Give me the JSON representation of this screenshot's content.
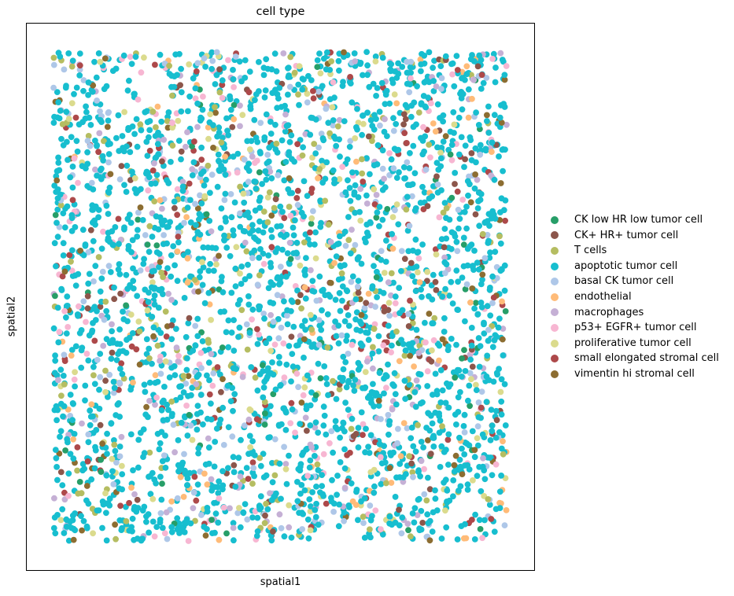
{
  "chart_data": {
    "type": "scatter",
    "title": "cell type",
    "xlabel": "spatial1",
    "ylabel": "spatial2",
    "grid": false,
    "ticks": false,
    "legend_position": "right",
    "categories": [
      {
        "name": "CK low HR low tumor cell",
        "color": "#279e68",
        "share": 0.02
      },
      {
        "name": "CK+ HR+ tumor cell",
        "color": "#8c564b",
        "share": 0.025
      },
      {
        "name": "T cells",
        "color": "#b5bd61",
        "share": 0.05
      },
      {
        "name": "apoptotic tumor cell",
        "color": "#17becf",
        "share": 0.62
      },
      {
        "name": "basal CK tumor cell",
        "color": "#aec7e8",
        "share": 0.08
      },
      {
        "name": "endothelial",
        "color": "#ffbb78",
        "share": 0.025
      },
      {
        "name": "macrophages",
        "color": "#c5b0d5",
        "share": 0.045
      },
      {
        "name": "p53+ EGFR+ tumor cell",
        "color": "#f7b6d2",
        "share": 0.04
      },
      {
        "name": "proliferative tumor cell",
        "color": "#dbdb8d",
        "share": 0.035
      },
      {
        "name": "small elongated stromal cell",
        "color": "#ad494a",
        "share": 0.035
      },
      {
        "name": "vimentin hi stromal cell",
        "color": "#8c6d31",
        "share": 0.025
      }
    ],
    "point_count": 3600
  }
}
